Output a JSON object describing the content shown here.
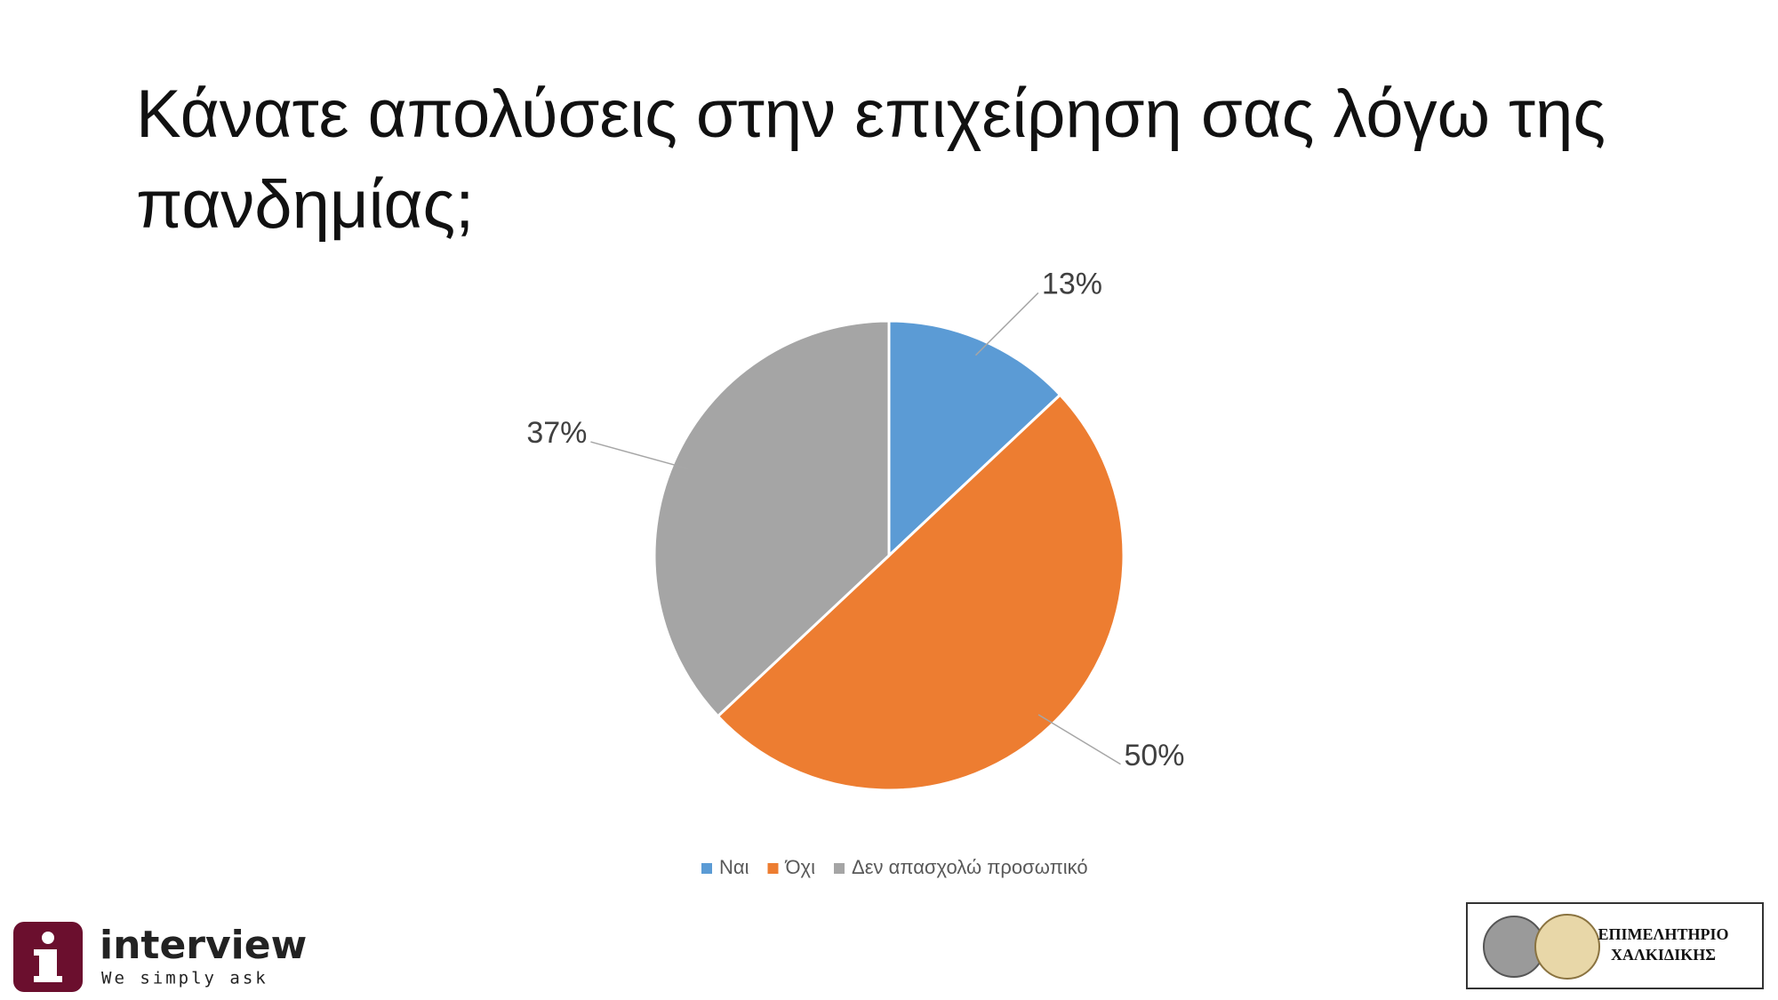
{
  "chart_data": {
    "type": "pie",
    "title": "Κάνατε απολύσεις στην επιχείρηση σας λόγω της πανδημίας;",
    "categories": [
      "Ναι",
      "Όχι",
      "Δεν απασχολώ προσωπικό"
    ],
    "values": [
      13,
      50,
      37
    ],
    "value_labels": [
      "13%",
      "50%",
      "37%"
    ],
    "colors": [
      "#5b9bd5",
      "#ed7d31",
      "#a5a5a5"
    ],
    "legend": "bottom"
  },
  "footer": {
    "brand": "interview",
    "tagline": "We simply ask",
    "chamber": [
      "ΕΠΙΜΕΛΗΤΗΡΙΟ",
      "ΧΑΛΚΙΔΙΚΗΣ"
    ]
  }
}
